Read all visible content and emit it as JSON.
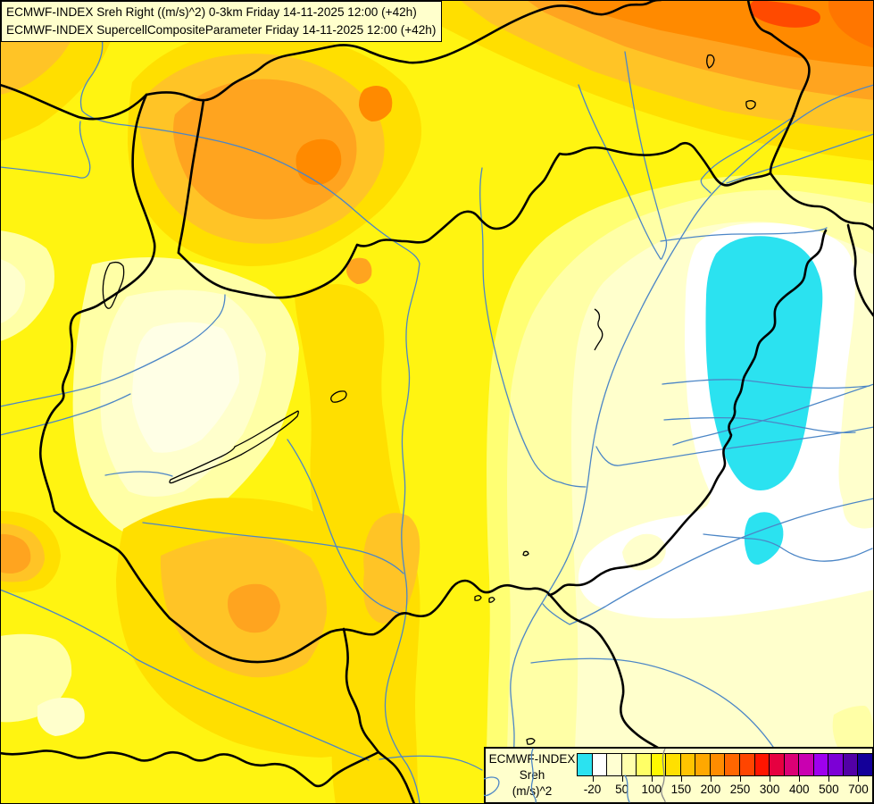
{
  "title_box": {
    "line1": "ECMWF-INDEX Sreh Right ((m/s)^2) 0-3km Friday 14-11-2025 12:00 (+42h)",
    "line2": "ECMWF-INDEX SupercellCompositeParameter Friday 14-11-2025 12:00 (+42h)"
  },
  "legend": {
    "label_lines": [
      "ECMWF-INDEX",
      "Sreh",
      "(m/s)^2"
    ],
    "tick_labels": [
      "-20",
      "50",
      "100",
      "150",
      "200",
      "250",
      "300",
      "400",
      "500",
      "700"
    ],
    "cell_colors": [
      "#2BE2F0",
      "#FFFFFF",
      "#FFFFD2",
      "#FFFFAC",
      "#FFFF66",
      "#FFF900",
      "#FFE000",
      "#FFC400",
      "#FFA800",
      "#FF8C00",
      "#FF6600",
      "#FF4500",
      "#FF1500",
      "#E60040",
      "#DB0075",
      "#C900B0",
      "#9F00EE",
      "#7C00D6",
      "#5200A6",
      "#140099"
    ]
  },
  "map": {
    "description": "ECMWF filled-contour forecast map of 0-3 km storm relative helicity over Hungary and the Carpathian Basin",
    "palette": {
      "yellow": "#FFF411",
      "light_yellow": "#FFFF73",
      "pale_yellow": "#FFFFA6",
      "cream": "#FFFFCC",
      "lightest": "#FFFFE6",
      "white": "#FFFFFF",
      "gold": "#FFDF00",
      "amber": "#FFC426",
      "orange": "#FFA41F",
      "deep_orange": "#FF8A00",
      "hot_spot": "#FF4A00",
      "corner_orange": "#FF7600",
      "negative_cyan": "#2BE2F0",
      "border": "#000000",
      "river": "#4C86C6",
      "river_gray": "#8A8A8A",
      "box_bg": "#FFFFCC",
      "box_border": "#000000",
      "text": "#000000"
    }
  }
}
